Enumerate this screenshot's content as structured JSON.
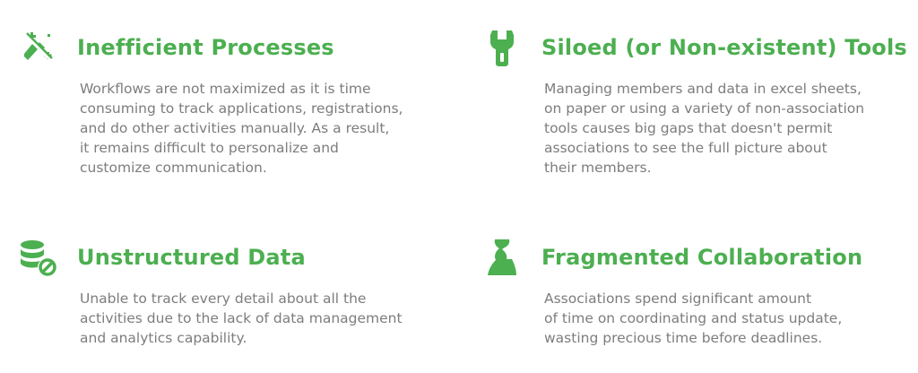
{
  "colors": {
    "accent": "#4caf50",
    "text": "#7d7d7d",
    "background": "#ffffff"
  },
  "features": [
    {
      "icon": "broken-wand-icon",
      "title": "Inefficient Processes",
      "lines": [
        "Workflows are not maximized as it is time",
        "consuming to track applications, registrations,",
        "and do other activities manually. As a result,",
        "it remains difficult to personalize and",
        "customize communication."
      ]
    },
    {
      "icon": "wrench-icon",
      "title": "Siloed (or Non-existent) Tools",
      "lines": [
        "Managing members and data in excel sheets,",
        "on paper or using a variety of non-association",
        "tools causes big gaps that doesn't permit",
        "associations to see the full picture about",
        "their members."
      ]
    },
    {
      "icon": "database-blocked-icon",
      "title": "Unstructured Data",
      "lines": [
        "Unable to track every detail about all the",
        "activities due to the lack of data management",
        "and analytics capability."
      ]
    },
    {
      "icon": "puzzle-piece-icon",
      "title": "Fragmented Collaboration",
      "lines": [
        "Associations spend significant amount",
        "of time on coordinating and status update,",
        "wasting precious time before deadlines."
      ]
    }
  ]
}
